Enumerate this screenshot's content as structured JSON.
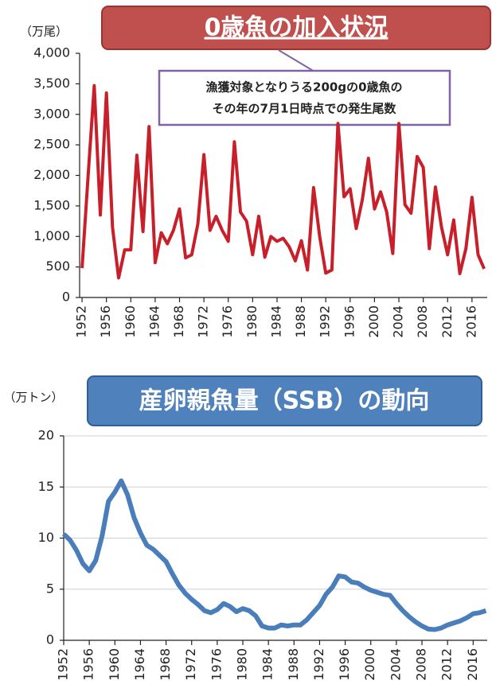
{
  "chart_data": [
    {
      "type": "line",
      "title": "0歳魚の加入状況",
      "y_unit": "（万尾）",
      "annotation": [
        "漁獲対象となりうる200gの0歳魚の",
        "その年の7月1日時点での発生尾数"
      ],
      "x": [
        1952,
        1953,
        1954,
        1955,
        1956,
        1957,
        1958,
        1959,
        1960,
        1961,
        1962,
        1963,
        1964,
        1965,
        1966,
        1967,
        1968,
        1969,
        1970,
        1971,
        1972,
        1973,
        1974,
        1975,
        1976,
        1977,
        1978,
        1979,
        1980,
        1981,
        1982,
        1983,
        1984,
        1985,
        1986,
        1987,
        1988,
        1989,
        1990,
        1991,
        1992,
        1993,
        1994,
        1995,
        1996,
        1997,
        1998,
        1999,
        2000,
        2001,
        2002,
        2003,
        2004,
        2005,
        2006,
        2007,
        2008,
        2009,
        2010,
        2011,
        2012,
        2013,
        2014,
        2015,
        2016,
        2017,
        2018
      ],
      "series": [
        {
          "color": "#c8202a",
          "values": [
            480,
            2000,
            3470,
            1350,
            3350,
            1150,
            320,
            780,
            780,
            2330,
            1080,
            2800,
            570,
            1060,
            880,
            1100,
            1450,
            650,
            700,
            1200,
            2340,
            1100,
            1330,
            1100,
            920,
            2550,
            1400,
            1250,
            700,
            1330,
            660,
            1000,
            920,
            970,
            830,
            600,
            930,
            450,
            1800,
            1000,
            400,
            450,
            2850,
            1650,
            1780,
            1130,
            1600,
            2280,
            1450,
            1730,
            1400,
            720,
            2850,
            1520,
            1380,
            2310,
            2130,
            800,
            1810,
            1150,
            700,
            1270,
            390,
            800,
            1640,
            700,
            470
          ]
        }
      ],
      "xlim": [
        1951.6,
        2018.5
      ],
      "xticks": [
        1952,
        1956,
        1960,
        1964,
        1968,
        1972,
        1976,
        1980,
        1984,
        1988,
        1992,
        1996,
        2000,
        2004,
        2008,
        2012,
        2016
      ],
      "ylim": [
        0,
        4000
      ],
      "yticks": [
        0,
        500,
        {
          "value": 1000,
          "label": "1,000"
        },
        {
          "value": 1500,
          "label": "1,500"
        },
        {
          "value": 2000,
          "label": "2,000"
        },
        {
          "value": 2500,
          "label": "2,500"
        },
        {
          "value": 3000,
          "label": "3,000"
        },
        {
          "value": 3500,
          "label": "3,500"
        },
        {
          "value": 4000,
          "label": "4,000"
        }
      ],
      "grid": false
    },
    {
      "type": "line",
      "title": "産卵親魚量（SSB）の動向",
      "y_unit": "（万トン）",
      "x": [
        1952,
        1953,
        1954,
        1955,
        1956,
        1957,
        1958,
        1959,
        1960,
        1961,
        1962,
        1963,
        1964,
        1965,
        1966,
        1967,
        1968,
        1969,
        1970,
        1971,
        1972,
        1973,
        1974,
        1975,
        1976,
        1977,
        1978,
        1979,
        1980,
        1981,
        1982,
        1983,
        1984,
        1985,
        1986,
        1987,
        1988,
        1989,
        1990,
        1991,
        1992,
        1993,
        1994,
        1995,
        1996,
        1997,
        1998,
        1999,
        2000,
        2001,
        2002,
        2003,
        2004,
        2005,
        2006,
        2007,
        2008,
        2009,
        2010,
        2011,
        2012,
        2013,
        2014,
        2015,
        2016,
        2017,
        2018
      ],
      "series": [
        {
          "color": "#4a7ebb",
          "values": [
            10.4,
            9.8,
            8.8,
            7.5,
            6.8,
            7.8,
            10.2,
            13.6,
            14.5,
            15.6,
            14.2,
            12.0,
            10.5,
            9.3,
            8.9,
            8.3,
            7.7,
            6.5,
            5.4,
            4.6,
            4.0,
            3.5,
            2.9,
            2.7,
            3.0,
            3.6,
            3.3,
            2.8,
            3.1,
            2.9,
            2.4,
            1.4,
            1.2,
            1.2,
            1.5,
            1.4,
            1.5,
            1.5,
            2.0,
            2.7,
            3.4,
            4.5,
            5.2,
            6.3,
            6.2,
            5.7,
            5.6,
            5.2,
            4.9,
            4.7,
            4.5,
            4.4,
            3.6,
            2.9,
            2.3,
            1.8,
            1.4,
            1.1,
            1.05,
            1.2,
            1.5,
            1.7,
            1.9,
            2.2,
            2.6,
            2.7,
            2.9
          ]
        }
      ],
      "xlim": [
        1952,
        2018.2
      ],
      "xticks": [
        1952,
        1956,
        1960,
        1964,
        1968,
        1972,
        1976,
        1980,
        1984,
        1988,
        1992,
        1996,
        2000,
        2004,
        2008,
        2012,
        2016
      ],
      "ylim": [
        0,
        20
      ],
      "yticks": [
        0,
        5,
        10,
        15,
        20
      ],
      "grid": true
    }
  ]
}
